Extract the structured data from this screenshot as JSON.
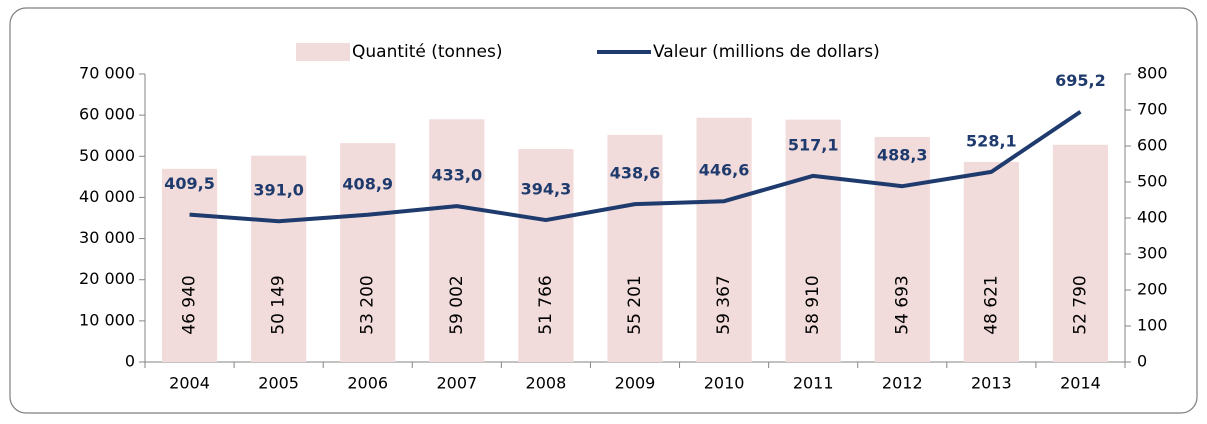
{
  "chart_data": {
    "type": "bar",
    "categories": [
      "2004",
      "2005",
      "2006",
      "2007",
      "2008",
      "2009",
      "2010",
      "2011",
      "2012",
      "2013",
      "2014"
    ],
    "series": [
      {
        "name": "Quantité (tonnes)",
        "type": "bar",
        "color": "#f2dcdb",
        "axis": "y",
        "values": [
          46940,
          50149,
          53200,
          59002,
          51766,
          55201,
          59367,
          58910,
          54693,
          48621,
          52790
        ],
        "value_labels": [
          "46 940",
          "50 149",
          "53 200",
          "59 002",
          "51 766",
          "55 201",
          "59 367",
          "58 910",
          "54 693",
          "48 621",
          "52 790"
        ]
      },
      {
        "name": "Valeur (millions de dollars)",
        "type": "line",
        "color": "#1f3b6e",
        "axis": "y2",
        "values": [
          409.5,
          391.0,
          408.9,
          433.0,
          394.3,
          438.6,
          446.6,
          517.1,
          488.3,
          528.1,
          695.2
        ],
        "value_labels": [
          "409,5",
          "391,0",
          "408,9",
          "433,0",
          "394,3",
          "438,6",
          "446,6",
          "517,1",
          "488,3",
          "528,1",
          "695,2"
        ]
      }
    ],
    "ylim": [
      0,
      70000
    ],
    "yticks": [
      0,
      {
        "value": 10000,
        "label": "10 000"
      },
      {
        "value": 20000,
        "label": "20 000"
      },
      {
        "value": 30000,
        "label": "30 000"
      },
      {
        "value": 40000,
        "label": "40 000"
      },
      {
        "value": 50000,
        "label": "50 000"
      },
      {
        "value": 60000,
        "label": "60 000"
      },
      {
        "value": 70000,
        "label": "70 000"
      }
    ],
    "y2lim": [
      0,
      800
    ],
    "y2ticks": [
      0,
      100,
      200,
      300,
      400,
      500,
      600,
      700,
      800
    ],
    "grid": false,
    "legend": "top"
  }
}
